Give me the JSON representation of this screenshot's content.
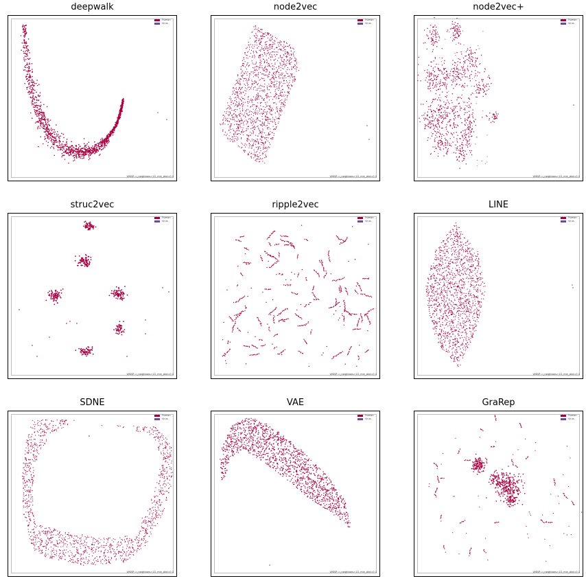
{
  "colors": {
    "human": "#a50040",
    "virus": "#6f4aa0"
  },
  "legend": {
    "human": "Human",
    "virus": "Virus"
  },
  "umap_note": "UMAP: n_neighbors=15, min_dist=0.1",
  "chart_data": [
    {
      "type": "scatter",
      "title": "deepwalk",
      "shape": "curve",
      "series": [
        {
          "name": "Human"
        },
        {
          "name": "Virus"
        }
      ]
    },
    {
      "type": "scatter",
      "title": "node2vec",
      "shape": "rhombus",
      "series": [
        {
          "name": "Human"
        },
        {
          "name": "Virus"
        }
      ]
    },
    {
      "type": "scatter",
      "title": "node2vec+",
      "shape": "clusters",
      "series": [
        {
          "name": "Human"
        },
        {
          "name": "Virus"
        }
      ]
    },
    {
      "type": "scatter",
      "title": "struc2vec",
      "shape": "blobs",
      "series": [
        {
          "name": "Human"
        },
        {
          "name": "Virus"
        }
      ]
    },
    {
      "type": "scatter",
      "title": "ripple2vec",
      "shape": "squiggles",
      "series": [
        {
          "name": "Human"
        },
        {
          "name": "Virus"
        }
      ]
    },
    {
      "type": "scatter",
      "title": "LINE",
      "shape": "diamond",
      "series": [
        {
          "name": "Human"
        },
        {
          "name": "Virus"
        }
      ]
    },
    {
      "type": "scatter",
      "title": "SDNE",
      "shape": "horseshoe",
      "series": [
        {
          "name": "Human"
        },
        {
          "name": "Virus"
        }
      ]
    },
    {
      "type": "scatter",
      "title": "VAE",
      "shape": "crescent",
      "series": [
        {
          "name": "Human"
        },
        {
          "name": "Virus"
        }
      ]
    },
    {
      "type": "scatter",
      "title": "GraRep",
      "shape": "cores",
      "series": [
        {
          "name": "Human"
        },
        {
          "name": "Virus"
        }
      ]
    }
  ]
}
